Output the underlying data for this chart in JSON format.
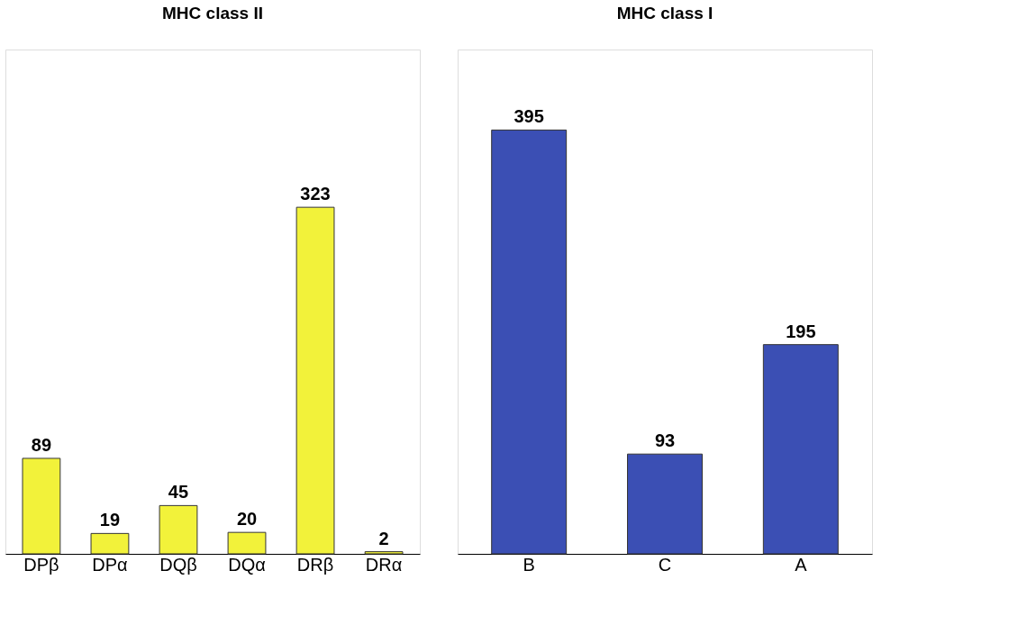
{
  "chart_data": [
    {
      "type": "bar",
      "title": "MHC class II",
      "categories": [
        "DPβ",
        "DPα",
        "DQβ",
        "DQα",
        "DRβ",
        "DRα"
      ],
      "values": [
        89,
        19,
        45,
        20,
        323,
        2
      ],
      "color": "#f2f23a",
      "ylim": [
        0,
        470
      ],
      "tick_labels": "x",
      "data_labels": true
    },
    {
      "type": "bar",
      "title": "MHC class I",
      "categories": [
        "B",
        "C",
        "A"
      ],
      "values": [
        395,
        93,
        195
      ],
      "color": "#3b4fb4",
      "ylim": [
        0,
        470
      ],
      "tick_labels": "x",
      "data_labels": true
    }
  ]
}
